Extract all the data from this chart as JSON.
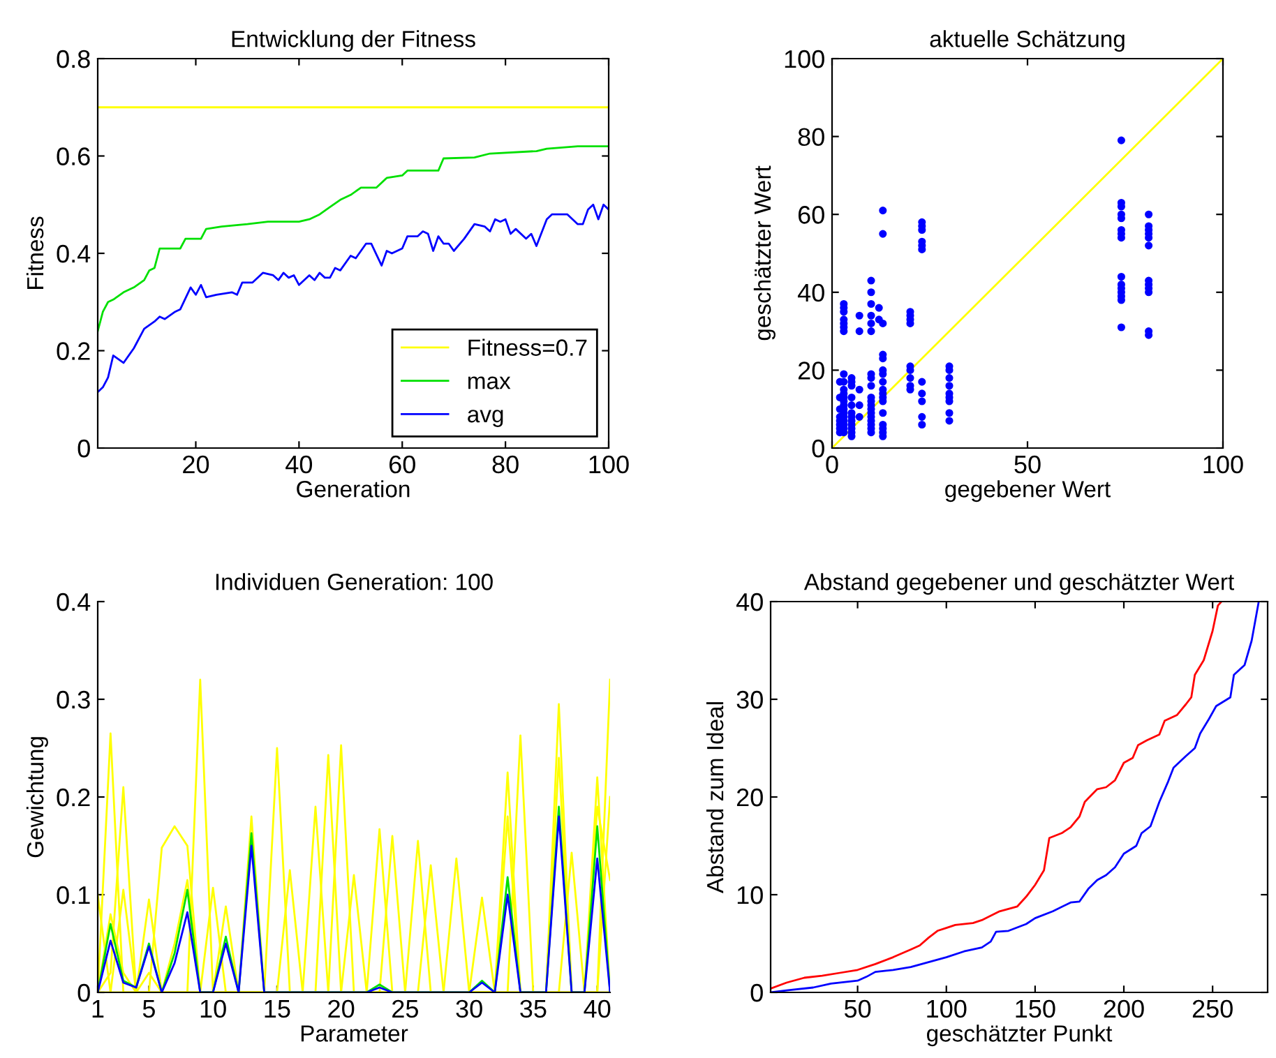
{
  "chart_data": [
    {
      "type": "line",
      "title": "Entwicklung der Fitness",
      "xlabel": "Generation",
      "ylabel": "Fitness",
      "xlim": [
        1,
        100
      ],
      "xticks": [
        20,
        40,
        60,
        80,
        100
      ],
      "ylim": [
        0,
        0.8
      ],
      "yticks": [
        0,
        0.2,
        0.4,
        0.6,
        0.8
      ],
      "legend": "bottom right",
      "grid": false,
      "series": [
        {
          "name": "Fitness=0.7",
          "color": "#ffff00",
          "x": [
            1,
            100
          ],
          "values": [
            0.7,
            0.7
          ]
        },
        {
          "name": "max",
          "color": "#00e000",
          "x": [
            1,
            2,
            3,
            4,
            6,
            8,
            10,
            11,
            12,
            13,
            17,
            18,
            21,
            22,
            25,
            30,
            34,
            40,
            42,
            44,
            46,
            48,
            50,
            52,
            55,
            57,
            60,
            61,
            67,
            68,
            74,
            77,
            86,
            88,
            94,
            100
          ],
          "values": [
            0.24,
            0.28,
            0.3,
            0.305,
            0.32,
            0.33,
            0.345,
            0.365,
            0.37,
            0.41,
            0.41,
            0.43,
            0.43,
            0.45,
            0.455,
            0.46,
            0.465,
            0.465,
            0.47,
            0.48,
            0.495,
            0.51,
            0.52,
            0.535,
            0.535,
            0.555,
            0.56,
            0.57,
            0.57,
            0.595,
            0.597,
            0.605,
            0.61,
            0.615,
            0.62,
            0.62
          ]
        },
        {
          "name": "avg",
          "color": "#0000ff",
          "x": [
            1,
            2,
            3,
            4,
            6,
            8,
            10,
            12,
            13,
            14,
            16,
            17,
            19,
            20,
            21,
            22,
            24,
            27,
            28,
            29,
            31,
            33,
            35,
            36,
            37,
            38,
            39,
            40,
            42,
            43,
            44,
            45,
            46,
            47,
            48,
            50,
            51,
            53,
            54,
            56,
            57,
            58,
            60,
            61,
            63,
            64,
            65,
            66,
            67,
            68,
            69,
            70,
            72,
            74,
            76,
            77,
            78,
            79,
            80,
            81,
            82,
            84,
            85,
            86,
            88,
            89,
            92,
            94,
            95,
            96,
            97,
            98,
            99,
            100
          ],
          "values": [
            0.115,
            0.125,
            0.145,
            0.19,
            0.175,
            0.205,
            0.245,
            0.26,
            0.27,
            0.265,
            0.28,
            0.285,
            0.33,
            0.315,
            0.335,
            0.31,
            0.315,
            0.32,
            0.315,
            0.34,
            0.34,
            0.36,
            0.355,
            0.345,
            0.36,
            0.35,
            0.355,
            0.335,
            0.355,
            0.345,
            0.36,
            0.35,
            0.35,
            0.37,
            0.365,
            0.395,
            0.39,
            0.42,
            0.42,
            0.375,
            0.405,
            0.4,
            0.41,
            0.435,
            0.435,
            0.445,
            0.44,
            0.405,
            0.435,
            0.42,
            0.42,
            0.405,
            0.43,
            0.46,
            0.455,
            0.445,
            0.47,
            0.465,
            0.47,
            0.44,
            0.45,
            0.43,
            0.44,
            0.415,
            0.47,
            0.48,
            0.48,
            0.46,
            0.46,
            0.49,
            0.5,
            0.47,
            0.5,
            0.49
          ]
        }
      ]
    },
    {
      "type": "scatter",
      "title": "aktuelle Schätzung",
      "xlabel": "gegebener Wert",
      "ylabel": "geschätzter Wert",
      "xlim": [
        0,
        100
      ],
      "xticks": [
        0,
        50,
        100
      ],
      "ylim": [
        0,
        100
      ],
      "yticks": [
        0,
        20,
        40,
        60,
        80,
        100
      ],
      "grid": false,
      "series": [
        {
          "type": "line",
          "color": "#ffff00",
          "x": [
            0,
            100
          ],
          "values": [
            0,
            100
          ]
        },
        {
          "type": "scatter",
          "color": "#0000ff",
          "marker": "circle",
          "x": [
            3,
            3,
            3,
            3,
            3,
            3,
            3,
            3,
            3,
            3,
            3,
            3,
            3,
            3,
            3,
            3,
            3,
            3,
            3,
            3,
            3,
            2,
            2,
            2,
            2,
            2,
            2,
            2,
            2,
            5,
            5,
            5,
            5,
            5,
            5,
            5,
            5,
            5,
            5,
            5,
            5,
            7,
            7,
            7,
            7,
            7,
            10,
            10,
            10,
            10,
            10,
            10,
            10,
            10,
            10,
            10,
            10,
            10,
            10,
            10,
            10,
            10,
            10,
            10,
            10,
            12,
            12,
            13,
            13,
            13,
            13,
            13,
            13,
            13,
            13,
            13,
            13,
            13,
            13,
            13,
            13,
            13,
            13,
            13,
            20,
            20,
            20,
            20,
            20,
            20,
            20,
            20,
            20,
            23,
            23,
            23,
            23,
            23,
            23,
            23,
            23,
            23,
            23,
            23,
            30,
            30,
            30,
            30,
            30,
            30,
            30,
            30,
            30,
            74,
            74,
            74,
            74,
            74,
            74,
            74,
            74,
            74,
            74,
            74,
            74,
            74,
            74,
            74,
            81,
            81,
            81,
            81,
            81,
            81,
            81,
            81,
            81,
            81,
            81,
            81
          ],
          "values": [
            37,
            36,
            35,
            33,
            32,
            31,
            30,
            19,
            17,
            15,
            14,
            13,
            12,
            11,
            10,
            9,
            8,
            7,
            6,
            5,
            4,
            17,
            13,
            10,
            8,
            7,
            6,
            5,
            4,
            18,
            17,
            16,
            13,
            11,
            9,
            8,
            7,
            6,
            5,
            4,
            3,
            34,
            30,
            15,
            11,
            8,
            43,
            40,
            37,
            34,
            32,
            30,
            19,
            18,
            16,
            13,
            12,
            11,
            10,
            9,
            8,
            7,
            6,
            5,
            4,
            36,
            33,
            61,
            55,
            32,
            24,
            23,
            20,
            19,
            17,
            15,
            14,
            13,
            12,
            9,
            6,
            5,
            4,
            3,
            35,
            34,
            33,
            32,
            21,
            20,
            18,
            16,
            15,
            58,
            57,
            56,
            53,
            52,
            51,
            17,
            14,
            12,
            8,
            6,
            21,
            20,
            18,
            16,
            14,
            13,
            12,
            9,
            7,
            79,
            63,
            62,
            60,
            59,
            56,
            55,
            54,
            44,
            42,
            41,
            40,
            39,
            38,
            31,
            60,
            57,
            56,
            55,
            54,
            52,
            43,
            42,
            41,
            40,
            30,
            29
          ]
        }
      ]
    },
    {
      "type": "line",
      "title": "Individuen Generation: 100",
      "xlabel": "Parameter",
      "ylabel": "Gewichtung",
      "xlim": [
        1,
        41
      ],
      "xticks": [
        1,
        5,
        10,
        15,
        20,
        25,
        30,
        35,
        40
      ],
      "ylim": [
        0,
        0.4
      ],
      "yticks": [
        0,
        0.1,
        0.2,
        0.3,
        0.4
      ],
      "grid": false,
      "x": [
        1,
        2,
        3,
        4,
        5,
        6,
        7,
        8,
        9,
        10,
        11,
        12,
        13,
        14,
        15,
        16,
        17,
        18,
        19,
        20,
        21,
        22,
        23,
        24,
        25,
        26,
        27,
        28,
        29,
        30,
        31,
        32,
        33,
        34,
        35,
        36,
        37,
        38,
        39,
        40,
        41
      ],
      "series": [
        {
          "color": "#ffff00",
          "values": [
            0,
            0.265,
            0,
            0,
            0.02,
            0,
            0,
            0,
            0.32,
            0,
            0,
            0,
            0,
            0,
            0.25,
            0,
            0,
            0,
            0,
            0.253,
            0,
            0,
            0,
            0,
            0,
            0,
            0,
            0,
            0,
            0,
            0,
            0,
            0,
            0.263,
            0,
            0,
            0,
            0,
            0,
            0,
            0.32
          ]
        },
        {
          "color": "#ffff00",
          "values": [
            0,
            0.02,
            0.21,
            0,
            0,
            0,
            0,
            0,
            0,
            0,
            0,
            0,
            0,
            0,
            0,
            0,
            0,
            0,
            0.243,
            0,
            0,
            0,
            0.167,
            0,
            0,
            0.155,
            0,
            0,
            0,
            0,
            0,
            0,
            0.225,
            0,
            0,
            0,
            0.295,
            0,
            0,
            0,
            0
          ]
        },
        {
          "color": "#ffff00",
          "values": [
            0,
            0,
            0,
            0,
            0,
            0.148,
            0.17,
            0.15,
            0,
            0,
            0,
            0,
            0,
            0,
            0,
            0.125,
            0,
            0.19,
            0,
            0,
            0,
            0,
            0,
            0.16,
            0,
            0,
            0,
            0,
            0.137,
            0,
            0,
            0,
            0,
            0,
            0,
            0,
            0,
            0,
            0,
            0.22,
            0
          ]
        },
        {
          "color": "#ffff00",
          "values": [
            0.1,
            0,
            0.105,
            0,
            0,
            0,
            0,
            0,
            0,
            0.107,
            0,
            0,
            0,
            0,
            0,
            0,
            0,
            0,
            0,
            0,
            0.12,
            0,
            0,
            0,
            0,
            0,
            0.13,
            0,
            0,
            0,
            0.097,
            0,
            0,
            0,
            0,
            0,
            0,
            0.143,
            0,
            0,
            0.2
          ]
        },
        {
          "color": "#ffff00",
          "values": [
            0,
            0.08,
            0.02,
            0,
            0.095,
            0,
            0.05,
            0.115,
            0,
            0,
            0.088,
            0,
            0.18,
            0,
            0,
            0,
            0,
            0,
            0,
            0,
            0,
            0,
            0,
            0,
            0,
            0,
            0,
            0,
            0,
            0,
            0,
            0,
            0.18,
            0,
            0,
            0,
            0.24,
            0,
            0,
            0.19,
            0.115
          ]
        },
        {
          "color": "#00e000",
          "values": [
            0,
            0.07,
            0.012,
            0.005,
            0.05,
            0,
            0.04,
            0.105,
            0,
            0,
            0.057,
            0,
            0.163,
            0,
            0,
            0,
            0,
            0,
            0,
            0,
            0,
            0,
            0.008,
            0,
            0,
            0,
            0,
            0,
            0,
            0,
            0.012,
            0,
            0.118,
            0,
            0,
            0,
            0.19,
            0,
            0,
            0.17,
            0
          ]
        },
        {
          "color": "#0000ff",
          "values": [
            0,
            0.053,
            0.01,
            0.005,
            0.047,
            0,
            0.03,
            0.082,
            0,
            0,
            0.05,
            0,
            0.15,
            0,
            0,
            0,
            0,
            0,
            0,
            0,
            0,
            0,
            0.005,
            0,
            0,
            0,
            0,
            0,
            0,
            0,
            0.01,
            0,
            0.1,
            0,
            0,
            0,
            0.18,
            0,
            0,
            0.137,
            0
          ]
        }
      ]
    },
    {
      "type": "line",
      "title": "Abstand gegebener und geschätzter Wert",
      "xlabel": "geschätzter Punkt",
      "ylabel": "Abstand zum Ideal",
      "xlim": [
        1,
        281
      ],
      "xticks": [
        50,
        100,
        150,
        200,
        250
      ],
      "ylim": [
        0,
        40
      ],
      "yticks": [
        0,
        10,
        20,
        30,
        40
      ],
      "grid": false,
      "series": [
        {
          "color": "#ff0000",
          "x": [
            1,
            10,
            20,
            30,
            40,
            50,
            60,
            70,
            80,
            85,
            90,
            95,
            100,
            105,
            115,
            120,
            130,
            140,
            145,
            150,
            155,
            158,
            165,
            170,
            175,
            178,
            185,
            190,
            195,
            200,
            205,
            208,
            213,
            220,
            223,
            230,
            235,
            238,
            240,
            245,
            250,
            253,
            255
          ],
          "values": [
            0.4,
            1,
            1.5,
            1.7,
            2,
            2.3,
            2.9,
            3.6,
            4.4,
            4.8,
            5.6,
            6.3,
            6.6,
            6.9,
            7.1,
            7.4,
            8.3,
            8.8,
            9.8,
            11,
            12.5,
            15.8,
            16.3,
            16.9,
            18,
            19.5,
            20.8,
            21,
            21.7,
            23.5,
            24,
            25.3,
            25.8,
            26.4,
            27.8,
            28.4,
            29.5,
            30.2,
            32.5,
            34,
            37,
            39.6,
            40
          ]
        },
        {
          "color": "#0000ff",
          "x": [
            1,
            10,
            25,
            35,
            50,
            55,
            60,
            70,
            80,
            90,
            100,
            110,
            120,
            125,
            128,
            135,
            145,
            150,
            160,
            170,
            175,
            180,
            185,
            190,
            195,
            200,
            207,
            210,
            215,
            220,
            225,
            228,
            235,
            240,
            243,
            248,
            252,
            260,
            262,
            268,
            272,
            276
          ],
          "values": [
            0,
            0.2,
            0.5,
            0.9,
            1.2,
            1.6,
            2.1,
            2.3,
            2.6,
            3.1,
            3.6,
            4.2,
            4.6,
            5.2,
            6.2,
            6.3,
            7,
            7.6,
            8.3,
            9.2,
            9.3,
            10.6,
            11.5,
            12,
            12.8,
            14.2,
            15,
            16.3,
            17,
            19.5,
            21.6,
            23,
            24.2,
            25,
            26.5,
            28,
            29.3,
            30.2,
            32.5,
            33.5,
            36,
            40
          ]
        }
      ]
    }
  ]
}
